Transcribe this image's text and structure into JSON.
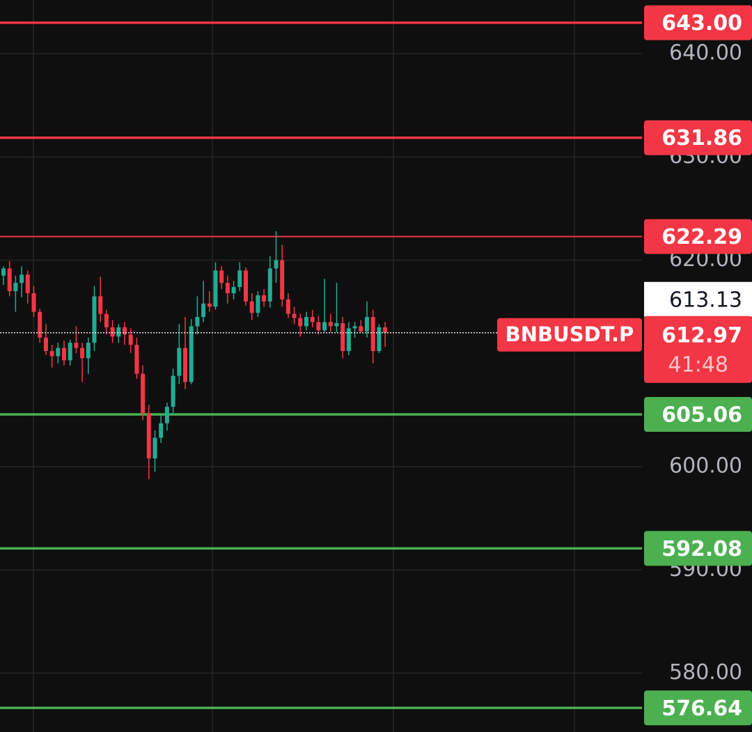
{
  "chart_data": {
    "type": "candlestick",
    "open": [
      618.5,
      619.2,
      617.0,
      617.8,
      618.6,
      616.8,
      615.0,
      612.5,
      611.2,
      610.7,
      611.5,
      610.3,
      612.0,
      611.5,
      610.5,
      612.0,
      616.5,
      614.8,
      613.5,
      612.6,
      613.5,
      612.8,
      611.8,
      609.0,
      605.2,
      600.8,
      602.8,
      604.2,
      605.8,
      608.8,
      611.5,
      608.2,
      613.6,
      614.5,
      615.8,
      615.5,
      619.0,
      617.8,
      616.8,
      617.4,
      619.0,
      616.0,
      614.9,
      616.6,
      616.0,
      619.2,
      620.0,
      616.2,
      614.8,
      614.4,
      613.6,
      614.5,
      614.0,
      613.2,
      614.0,
      613.6,
      613.9,
      611.2,
      613.4,
      613.6,
      613.1,
      614.5,
      611.2,
      613.5
    ],
    "high": [
      619.4,
      619.9,
      618.5,
      619.4,
      619.0,
      617.5,
      615.3,
      613.8,
      611.8,
      612.0,
      612.2,
      612.3,
      613.6,
      612.0,
      612.5,
      617.5,
      618.4,
      615.2,
      614.2,
      613.8,
      614.0,
      613.4,
      612.5,
      609.8,
      606.0,
      603.5,
      605.0,
      606.2,
      609.5,
      613.8,
      614.5,
      614.3,
      616.5,
      618.0,
      617.0,
      619.8,
      619.4,
      618.5,
      618.0,
      619.8,
      619.3,
      616.8,
      617.0,
      617.2,
      620.4,
      622.8,
      621.5,
      616.8,
      615.5,
      614.8,
      615.0,
      615.2,
      614.6,
      618.2,
      614.8,
      617.8,
      614.5,
      614.0,
      614.0,
      614.2,
      616.0,
      615.2,
      613.8,
      614.0
    ],
    "low": [
      617.6,
      616.5,
      615.0,
      616.4,
      615.8,
      614.5,
      612.0,
      610.8,
      609.6,
      610.0,
      609.8,
      609.8,
      611.0,
      608.2,
      609.0,
      611.2,
      614.0,
      612.8,
      612.0,
      612.0,
      611.8,
      611.0,
      608.5,
      604.5,
      598.8,
      599.5,
      602.3,
      603.5,
      605.0,
      608.0,
      607.5,
      608.0,
      612.8,
      614.0,
      615.0,
      615.2,
      617.2,
      615.8,
      616.2,
      617.0,
      615.6,
      614.2,
      614.5,
      615.5,
      615.4,
      617.8,
      615.5,
      614.4,
      613.8,
      612.6,
      613.2,
      613.5,
      612.8,
      613.0,
      613.0,
      613.0,
      610.5,
      610.8,
      612.5,
      613.0,
      612.5,
      610.0,
      611.0,
      611.6
    ],
    "close": [
      619.2,
      617.0,
      617.8,
      618.6,
      616.8,
      615.0,
      612.5,
      611.2,
      610.7,
      611.5,
      610.3,
      612.0,
      611.5,
      610.5,
      612.0,
      616.5,
      614.8,
      613.5,
      612.6,
      613.5,
      612.8,
      611.8,
      609.0,
      605.2,
      600.8,
      602.8,
      604.2,
      605.8,
      608.8,
      611.5,
      608.2,
      613.6,
      614.5,
      615.8,
      615.5,
      619.0,
      617.8,
      616.8,
      617.4,
      619.0,
      616.0,
      614.9,
      616.6,
      616.0,
      619.2,
      620.0,
      616.2,
      614.8,
      614.4,
      613.6,
      614.5,
      614.0,
      613.2,
      614.0,
      613.6,
      613.9,
      611.2,
      613.4,
      613.6,
      613.1,
      614.5,
      611.2,
      613.5,
      612.97
    ],
    "up_color": "#22ab94",
    "down_color": "#f23645",
    "ylim": [
      574.3,
      645.2
    ],
    "yticks": [
      {
        "value": 580,
        "label": "580.00"
      },
      {
        "value": 590,
        "label": "590.00"
      },
      {
        "value": 600,
        "label": "600.00"
      },
      {
        "value": 620,
        "label": "620.00"
      },
      {
        "value": 630,
        "label": "630.00"
      },
      {
        "value": 640,
        "label": "640.00"
      }
    ],
    "grid": true,
    "levels": [
      {
        "value": 643.0,
        "label": "643.00",
        "color": "#f23645"
      },
      {
        "value": 631.86,
        "label": "631.86",
        "color": "#f23645"
      },
      {
        "value": 622.29,
        "label": "622.29",
        "color": "#f23645"
      },
      {
        "value": 605.06,
        "label": "605.06",
        "color": "#4caf50"
      },
      {
        "value": 592.08,
        "label": "592.08",
        "color": "#4caf50"
      },
      {
        "value": 576.64,
        "label": "576.64",
        "color": "#4caf50"
      }
    ],
    "last_price": {
      "value": 612.97,
      "label": "612.97",
      "symbol": "BNBUSDT.P",
      "countdown": "41:48",
      "color": "#f23645"
    },
    "crosshair_price": {
      "value": 613.13,
      "label": "613.13"
    }
  }
}
